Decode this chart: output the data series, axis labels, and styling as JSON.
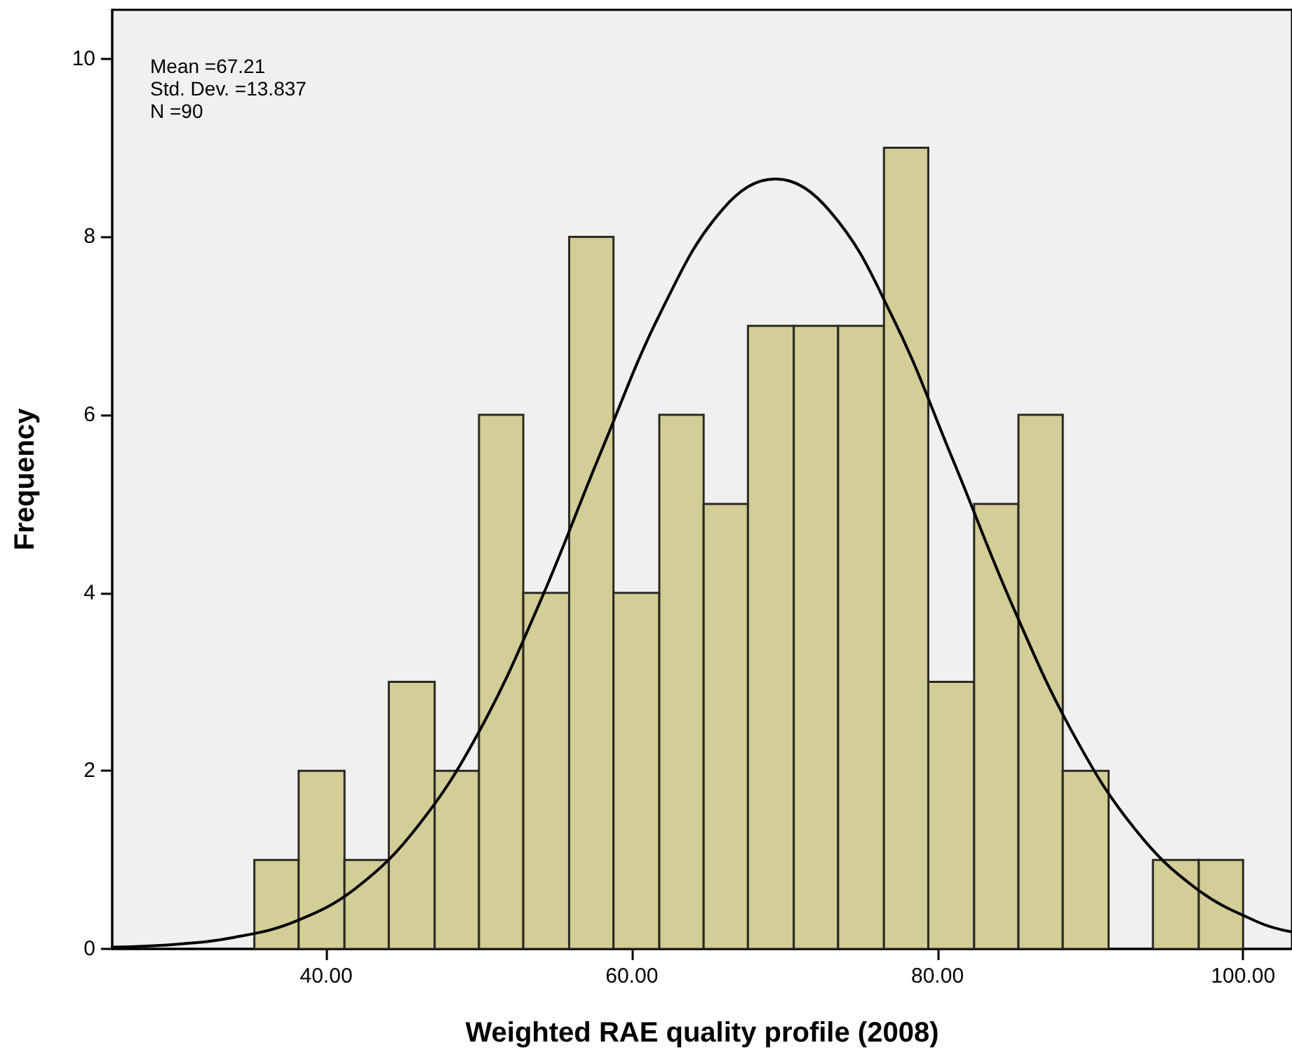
{
  "chart_data": {
    "type": "histogram",
    "xlabel": "Weighted RAE quality profile (2008)",
    "ylabel": "Frequency",
    "annotations": [
      "Mean =67.21",
      "Std. Dev. =13.837",
      "N =90"
    ],
    "xlim": [
      26,
      103.2
    ],
    "xticks": [
      {
        "value": 40,
        "label": "40.00"
      },
      {
        "value": 60,
        "label": "60.00"
      },
      {
        "value": 80,
        "label": "80.00"
      },
      {
        "value": 100,
        "label": "100.00"
      }
    ],
    "ylim": [
      0,
      10.55
    ],
    "yticks": [
      0,
      2,
      4,
      6,
      8,
      10
    ],
    "grid": false,
    "marker": "none",
    "line_style": "solid",
    "series": [
      {
        "type": "histogram",
        "color": "#d3cd97",
        "bins": [
          35.3,
          38.2,
          41.2,
          44.1,
          47.1,
          50.0,
          52.9,
          55.9,
          58.8,
          61.8,
          64.7,
          67.6,
          70.6,
          73.5,
          76.5,
          79.4,
          82.4,
          85.3,
          88.2,
          91.2,
          94.1,
          97.1,
          100.0
        ],
        "values": [
          1,
          2,
          1,
          3,
          2,
          6,
          4,
          8,
          4,
          6,
          5,
          7,
          7,
          7,
          9,
          3,
          5,
          6,
          2,
          0,
          1,
          1
        ]
      },
      {
        "type": "line",
        "color": "#000000",
        "x": [
          26,
          30,
          34,
          38,
          42,
          46,
          50,
          54,
          58,
          62,
          66,
          69.4,
          73,
          77,
          81,
          85,
          89,
          93,
          97,
          101,
          103.2
        ],
        "values": [
          0.02,
          0.05,
          0.13,
          0.31,
          0.69,
          1.38,
          2.44,
          3.9,
          5.59,
          7.19,
          8.32,
          8.65,
          8.28,
          7.12,
          5.5,
          3.82,
          2.38,
          1.33,
          0.67,
          0.3,
          0.19
        ]
      }
    ]
  }
}
